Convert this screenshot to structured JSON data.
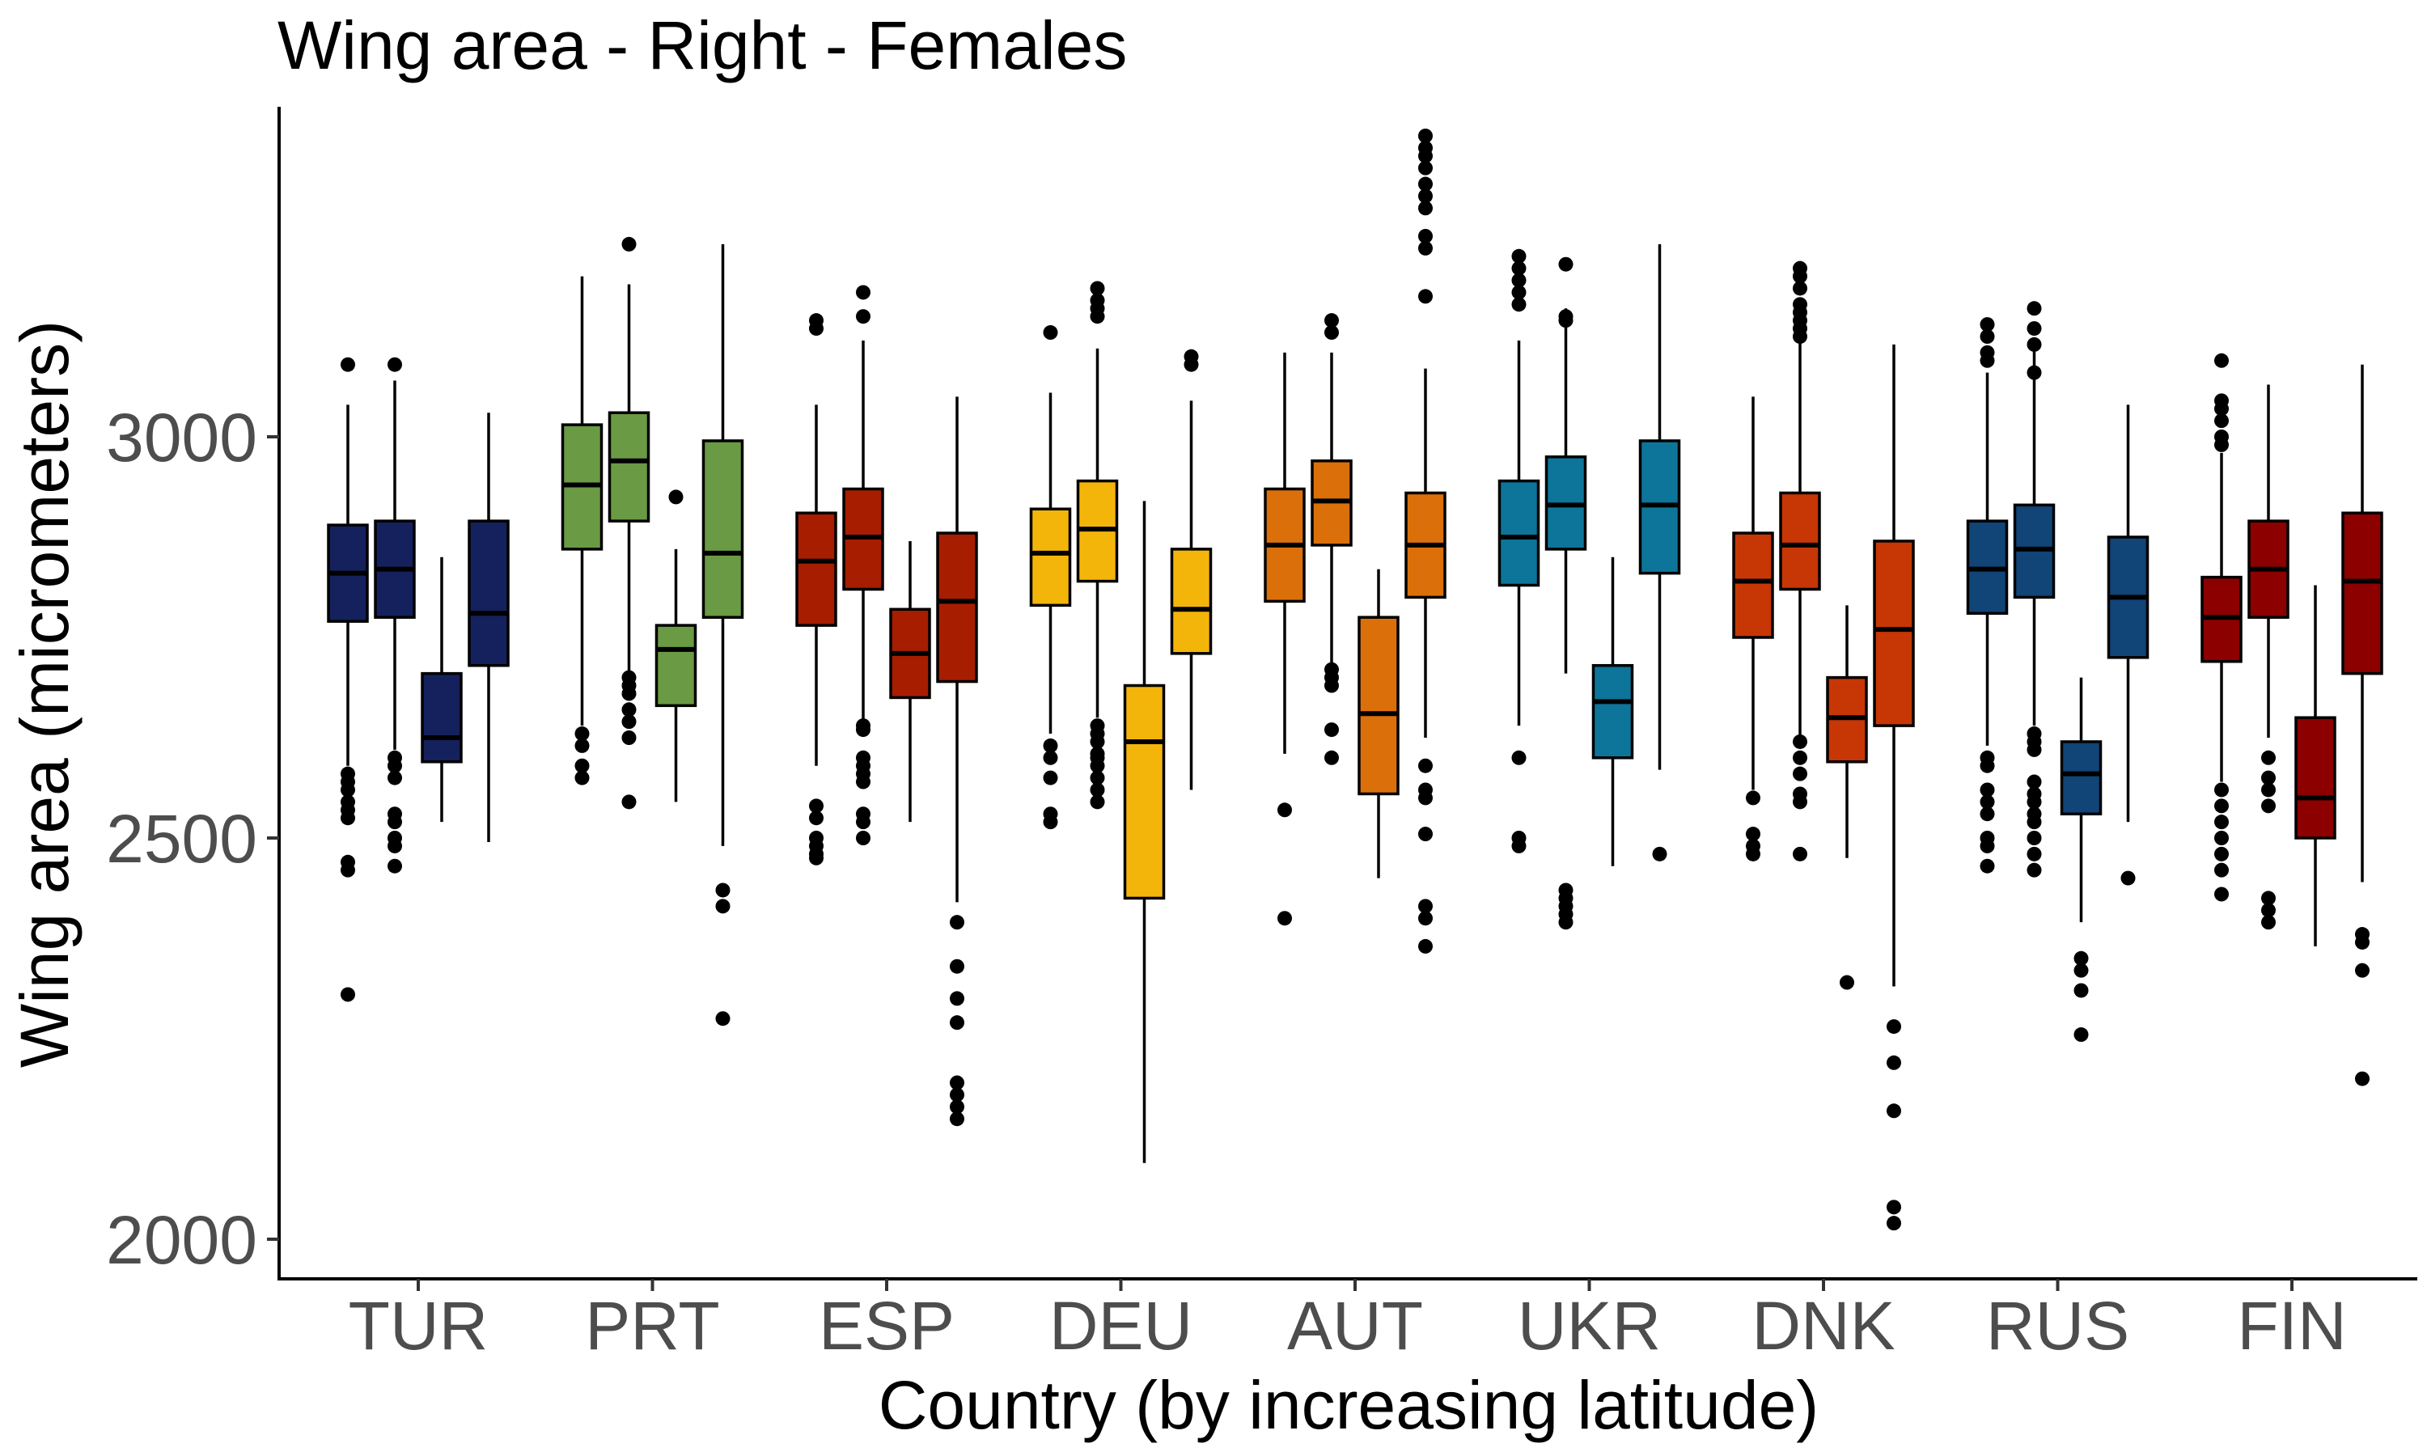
{
  "chart_data": {
    "type": "boxplot",
    "title": "Wing area - Right - Females",
    "xlabel": "Country (by increasing latitude)",
    "ylabel": "Wing area (micrometers)",
    "ylim": [
      1950,
      3410
    ],
    "yticks": [
      2000,
      2500,
      3000
    ],
    "grid": false,
    "legend": "none",
    "categories": [
      "TUR",
      "PRT",
      "ESP",
      "DEU",
      "AUT",
      "UKR",
      "DNK",
      "RUS",
      "FIN"
    ],
    "groups": [
      {
        "category": "TUR",
        "color": "#15215c",
        "boxes": [
          {
            "q1": 2770,
            "median": 2830,
            "q3": 2890,
            "whisker_low": 2590,
            "whisker_high": 3040,
            "outliers": [
              3090,
              2580,
              2570,
              2560,
              2545,
              2535,
              2525,
              2470,
              2460,
              2305
            ]
          },
          {
            "q1": 2775,
            "median": 2835,
            "q3": 2895,
            "whisker_low": 2610,
            "whisker_high": 3070,
            "outliers": [
              3090,
              2600,
              2590,
              2575,
              2530,
              2520,
              2500,
              2490,
              2465
            ]
          },
          {
            "q1": 2595,
            "median": 2625,
            "q3": 2705,
            "whisker_low": 2520,
            "whisker_high": 2850,
            "outliers": []
          },
          {
            "q1": 2715,
            "median": 2780,
            "q3": 2895,
            "whisker_low": 2495,
            "whisker_high": 3030,
            "outliers": []
          }
        ]
      },
      {
        "category": "PRT",
        "color": "#6a9a43",
        "boxes": [
          {
            "q1": 2860,
            "median": 2940,
            "q3": 3015,
            "whisker_low": 2640,
            "whisker_high": 3200,
            "outliers": [
              2630,
              2615,
              2590,
              2575
            ]
          },
          {
            "q1": 2895,
            "median": 2970,
            "q3": 3030,
            "whisker_low": 2700,
            "whisker_high": 3190,
            "outliers": [
              3240,
              2700,
              2690,
              2680,
              2660,
              2645,
              2625,
              2545
            ]
          },
          {
            "q1": 2665,
            "median": 2735,
            "q3": 2765,
            "whisker_low": 2545,
            "whisker_high": 2860,
            "outliers": [
              2925
            ]
          },
          {
            "q1": 2775,
            "median": 2855,
            "q3": 2995,
            "whisker_low": 2490,
            "whisker_high": 3240,
            "outliers": [
              2435,
              2415,
              2275
            ]
          }
        ]
      },
      {
        "category": "ESP",
        "color": "#a71d00",
        "boxes": [
          {
            "q1": 2765,
            "median": 2845,
            "q3": 2905,
            "whisker_low": 2590,
            "whisker_high": 3040,
            "outliers": [
              3145,
              3135,
              2540,
              2525,
              2500,
              2490,
              2480,
              2475
            ]
          },
          {
            "q1": 2810,
            "median": 2875,
            "q3": 2935,
            "whisker_low": 2645,
            "whisker_high": 3120,
            "outliers": [
              3180,
              3150,
              2640,
              2635,
              2600,
              2590,
              2580,
              2570,
              2530,
              2520,
              2500
            ]
          },
          {
            "q1": 2675,
            "median": 2730,
            "q3": 2785,
            "whisker_low": 2520,
            "whisker_high": 2870,
            "outliers": []
          },
          {
            "q1": 2695,
            "median": 2795,
            "q3": 2880,
            "whisker_low": 2420,
            "whisker_high": 3050,
            "outliers": [
              2395,
              2340,
              2300,
              2270,
              2195,
              2180,
              2165,
              2150
            ]
          }
        ]
      },
      {
        "category": "DEU",
        "color": "#f4b50a",
        "boxes": [
          {
            "q1": 2790,
            "median": 2855,
            "q3": 2910,
            "whisker_low": 2630,
            "whisker_high": 3055,
            "outliers": [
              3130,
              2615,
              2600,
              2575,
              2530,
              2520
            ]
          },
          {
            "q1": 2820,
            "median": 2885,
            "q3": 2945,
            "whisker_low": 2650,
            "whisker_high": 3110,
            "outliers": [
              3185,
              3170,
              3160,
              3150,
              2640,
              2630,
              2620,
              2605,
              2600,
              2590,
              2575,
              2560,
              2545
            ]
          },
          {
            "q1": 2425,
            "median": 2620,
            "q3": 2690,
            "whisker_low": 2095,
            "whisker_high": 2920,
            "outliers": []
          },
          {
            "q1": 2730,
            "median": 2785,
            "q3": 2860,
            "whisker_low": 2560,
            "whisker_high": 3045,
            "outliers": [
              3100,
              3090
            ]
          }
        ]
      },
      {
        "category": "AUT",
        "color": "#db700a",
        "boxes": [
          {
            "q1": 2795,
            "median": 2865,
            "q3": 2935,
            "whisker_low": 2605,
            "whisker_high": 3105,
            "outliers": [
              2535,
              2400
            ]
          },
          {
            "q1": 2865,
            "median": 2920,
            "q3": 2970,
            "whisker_low": 2715,
            "whisker_high": 3105,
            "outliers": [
              3145,
              3130,
              2710,
              2700,
              2690,
              2635,
              2600
            ]
          },
          {
            "q1": 2555,
            "median": 2655,
            "q3": 2775,
            "whisker_low": 2450,
            "whisker_high": 2835,
            "outliers": []
          },
          {
            "q1": 2800,
            "median": 2865,
            "q3": 2930,
            "whisker_low": 2625,
            "whisker_high": 3085,
            "outliers": [
              3375,
              3360,
              3350,
              3335,
              3315,
              3300,
              3285,
              3250,
              3235,
              3175,
              2590,
              2560,
              2550,
              2505,
              2415,
              2400,
              2365
            ]
          }
        ]
      },
      {
        "category": "UKR",
        "color": "#0c7599",
        "boxes": [
          {
            "q1": 2815,
            "median": 2875,
            "q3": 2945,
            "whisker_low": 2640,
            "whisker_high": 3120,
            "outliers": [
              3225,
              3210,
              3195,
              3180,
              3165,
              2600,
              2500,
              2490
            ]
          },
          {
            "q1": 2860,
            "median": 2915,
            "q3": 2975,
            "whisker_low": 2705,
            "whisker_high": 3160,
            "outliers": [
              3215,
              3150,
              3145,
              2435,
              2425,
              2415,
              2405,
              2395
            ]
          },
          {
            "q1": 2600,
            "median": 2670,
            "q3": 2715,
            "whisker_low": 2465,
            "whisker_high": 2850,
            "outliers": []
          },
          {
            "q1": 2830,
            "median": 2915,
            "q3": 2995,
            "whisker_low": 2585,
            "whisker_high": 3240,
            "outliers": [
              2480
            ]
          }
        ]
      },
      {
        "category": "DNK",
        "color": "#c73605",
        "boxes": [
          {
            "q1": 2750,
            "median": 2820,
            "q3": 2880,
            "whisker_low": 2560,
            "whisker_high": 3050,
            "outliers": [
              2550,
              2505,
              2490,
              2480
            ]
          },
          {
            "q1": 2810,
            "median": 2865,
            "q3": 2930,
            "whisker_low": 2625,
            "whisker_high": 3125,
            "outliers": [
              3210,
              3200,
              3185,
              3165,
              3155,
              3145,
              3135,
              3125,
              2620,
              2600,
              2580,
              2555,
              2545,
              2480
            ]
          },
          {
            "q1": 2595,
            "median": 2650,
            "q3": 2700,
            "whisker_low": 2475,
            "whisker_high": 2790,
            "outliers": [
              2320
            ]
          },
          {
            "q1": 2640,
            "median": 2760,
            "q3": 2870,
            "whisker_low": 2315,
            "whisker_high": 3115,
            "outliers": [
              2265,
              2220,
              2160,
              2040,
              2020
            ]
          }
        ]
      },
      {
        "category": "RUS",
        "color": "#114477",
        "boxes": [
          {
            "q1": 2780,
            "median": 2835,
            "q3": 2895,
            "whisker_low": 2615,
            "whisker_high": 3080,
            "outliers": [
              3140,
              3125,
              3105,
              3095,
              2600,
              2590,
              2560,
              2545,
              2530,
              2500,
              2490,
              2465
            ]
          },
          {
            "q1": 2800,
            "median": 2860,
            "q3": 2915,
            "whisker_low": 2640,
            "whisker_high": 3110,
            "outliers": [
              3160,
              3135,
              3115,
              3080,
              2630,
              2620,
              2610,
              2570,
              2555,
              2545,
              2530,
              2520,
              2500,
              2480,
              2460
            ]
          },
          {
            "q1": 2530,
            "median": 2580,
            "q3": 2620,
            "whisker_low": 2395,
            "whisker_high": 2700,
            "outliers": [
              2350,
              2335,
              2310,
              2255
            ]
          },
          {
            "q1": 2725,
            "median": 2800,
            "q3": 2875,
            "whisker_low": 2520,
            "whisker_high": 3040,
            "outliers": [
              2450
            ]
          }
        ]
      },
      {
        "category": "FIN",
        "color": "#8c0000",
        "boxes": [
          {
            "q1": 2720,
            "median": 2775,
            "q3": 2825,
            "whisker_low": 2570,
            "whisker_high": 2980,
            "outliers": [
              3095,
              3045,
              3035,
              3020,
              3000,
              2990,
              2560,
              2540,
              2520,
              2500,
              2480,
              2460,
              2430
            ]
          },
          {
            "q1": 2775,
            "median": 2835,
            "q3": 2895,
            "whisker_low": 2625,
            "whisker_high": 3065,
            "outliers": [
              2600,
              2575,
              2560,
              2540,
              2425,
              2410,
              2395
            ]
          },
          {
            "q1": 2500,
            "median": 2550,
            "q3": 2650,
            "whisker_low": 2365,
            "whisker_high": 2815,
            "outliers": []
          },
          {
            "q1": 2705,
            "median": 2820,
            "q3": 2905,
            "whisker_low": 2445,
            "whisker_high": 3090,
            "outliers": [
              2380,
              2370,
              2335,
              2200
            ]
          }
        ]
      }
    ]
  }
}
